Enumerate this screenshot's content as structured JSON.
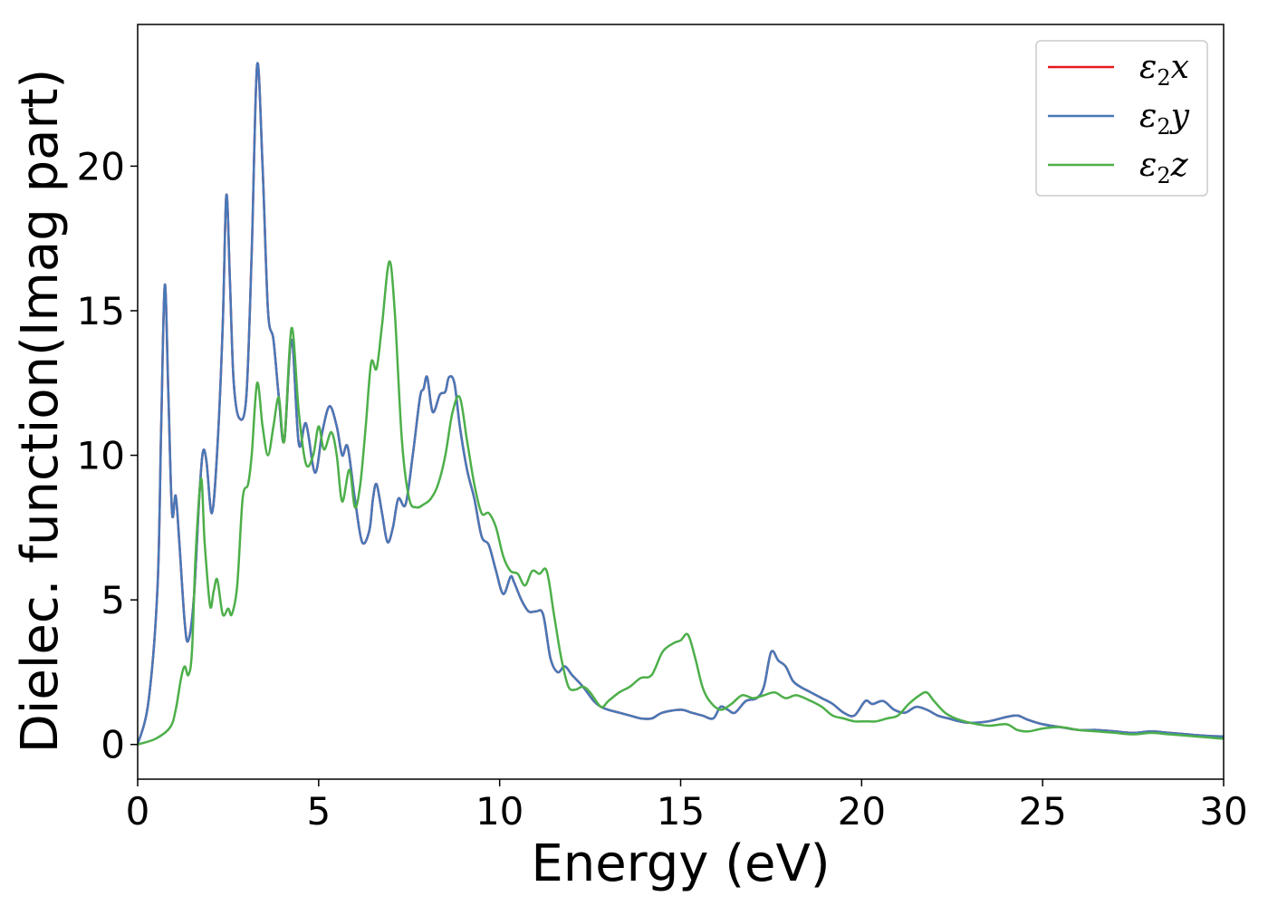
{
  "chart_data": {
    "type": "line",
    "xlabel": "Energy (eV)",
    "ylabel": "Dielec. function(Imag part)",
    "xlim": [
      0,
      30
    ],
    "ylim": [
      -1.2,
      24.9
    ],
    "xticks": [
      0,
      5,
      10,
      15,
      20,
      25,
      30
    ],
    "yticks": [
      0,
      5,
      10,
      15,
      20
    ],
    "grid": false,
    "legend_position": "top-right",
    "series": [
      {
        "name": "ε2x",
        "legend_base": "ε",
        "legend_sub": "2",
        "legend_suffix": "x",
        "color": "#e41a1c",
        "x": [
          0,
          0.3,
          0.55,
          0.65,
          0.75,
          0.85,
          0.95,
          1.05,
          1.15,
          1.3,
          1.4,
          1.55,
          1.7,
          1.8,
          1.9,
          2.05,
          2.2,
          2.35,
          2.45,
          2.55,
          2.65,
          2.8,
          3.0,
          3.15,
          3.3,
          3.45,
          3.6,
          3.75,
          3.9,
          4.05,
          4.25,
          4.45,
          4.65,
          4.9,
          5.1,
          5.3,
          5.5,
          5.65,
          5.8,
          6.0,
          6.2,
          6.4,
          6.5,
          6.6,
          6.75,
          6.9,
          7.05,
          7.2,
          7.4,
          7.6,
          7.8,
          7.9,
          8.0,
          8.15,
          8.35,
          8.5,
          8.6,
          8.75,
          8.9,
          9.1,
          9.3,
          9.5,
          9.7,
          9.9,
          10.1,
          10.3,
          10.4,
          10.6,
          10.8,
          11.0,
          11.2,
          11.4,
          11.6,
          11.8,
          12.0,
          12.3,
          12.6,
          12.8,
          13.0,
          13.3,
          13.6,
          13.9,
          14.2,
          14.5,
          15.0,
          15.3,
          15.6,
          15.9,
          16.1,
          16.3,
          16.5,
          16.8,
          17.1,
          17.3,
          17.5,
          17.7,
          17.9,
          18.1,
          18.3,
          18.6,
          18.9,
          19.2,
          19.5,
          19.8,
          20.1,
          20.3,
          20.6,
          20.9,
          21.2,
          21.5,
          21.8,
          22.1,
          22.4,
          22.7,
          23.0,
          23.5,
          24.0,
          24.3,
          24.6,
          25.0,
          25.5,
          26.0,
          26.5,
          27.0,
          27.5,
          28.0,
          28.5,
          29.0,
          29.5,
          30.0
        ],
        "y": [
          0,
          1.5,
          5.5,
          11.0,
          15.9,
          12.0,
          8.0,
          8.6,
          7.0,
          4.2,
          3.6,
          5.0,
          8.5,
          10.1,
          9.8,
          8.0,
          10.2,
          14.5,
          19.0,
          16.0,
          12.6,
          11.3,
          12.0,
          17.0,
          23.5,
          20.0,
          15.0,
          14.0,
          12.0,
          10.5,
          14.0,
          10.4,
          11.1,
          9.4,
          10.8,
          11.7,
          11.0,
          10.0,
          10.3,
          8.5,
          7.0,
          7.4,
          8.5,
          9.0,
          8.0,
          7.0,
          7.5,
          8.5,
          8.3,
          10.0,
          12.0,
          12.3,
          12.7,
          11.5,
          12.1,
          12.2,
          12.7,
          12.5,
          11.0,
          9.5,
          8.5,
          7.2,
          6.9,
          6.0,
          5.2,
          5.8,
          5.6,
          5.0,
          4.6,
          4.6,
          4.5,
          3.0,
          2.5,
          2.7,
          2.4,
          2.0,
          1.5,
          1.3,
          1.2,
          1.1,
          1.0,
          0.9,
          0.9,
          1.1,
          1.2,
          1.1,
          1.0,
          0.9,
          1.3,
          1.2,
          1.1,
          1.5,
          1.6,
          2.0,
          3.2,
          2.9,
          2.7,
          2.2,
          2.0,
          1.8,
          1.6,
          1.4,
          1.1,
          1.0,
          1.5,
          1.4,
          1.5,
          1.2,
          1.1,
          1.3,
          1.2,
          1.0,
          0.9,
          0.8,
          0.75,
          0.8,
          0.95,
          1.0,
          0.85,
          0.7,
          0.6,
          0.5,
          0.5,
          0.45,
          0.4,
          0.45,
          0.4,
          0.35,
          0.3,
          0.28
        ]
      },
      {
        "name": "ε2y",
        "legend_base": "ε",
        "legend_sub": "2",
        "legend_suffix": "y",
        "color": "#4878b8",
        "x": [
          0,
          0.3,
          0.55,
          0.65,
          0.75,
          0.85,
          0.95,
          1.05,
          1.15,
          1.3,
          1.4,
          1.55,
          1.7,
          1.8,
          1.9,
          2.05,
          2.2,
          2.35,
          2.45,
          2.55,
          2.65,
          2.8,
          3.0,
          3.15,
          3.3,
          3.45,
          3.6,
          3.75,
          3.9,
          4.05,
          4.25,
          4.45,
          4.65,
          4.9,
          5.1,
          5.3,
          5.5,
          5.65,
          5.8,
          6.0,
          6.2,
          6.4,
          6.5,
          6.6,
          6.75,
          6.9,
          7.05,
          7.2,
          7.4,
          7.6,
          7.8,
          7.9,
          8.0,
          8.15,
          8.35,
          8.5,
          8.6,
          8.75,
          8.9,
          9.1,
          9.3,
          9.5,
          9.7,
          9.9,
          10.1,
          10.3,
          10.4,
          10.6,
          10.8,
          11.0,
          11.2,
          11.4,
          11.6,
          11.8,
          12.0,
          12.3,
          12.6,
          12.8,
          13.0,
          13.3,
          13.6,
          13.9,
          14.2,
          14.5,
          15.0,
          15.3,
          15.6,
          15.9,
          16.1,
          16.3,
          16.5,
          16.8,
          17.1,
          17.3,
          17.5,
          17.7,
          17.9,
          18.1,
          18.3,
          18.6,
          18.9,
          19.2,
          19.5,
          19.8,
          20.1,
          20.3,
          20.6,
          20.9,
          21.2,
          21.5,
          21.8,
          22.1,
          22.4,
          22.7,
          23.0,
          23.5,
          24.0,
          24.3,
          24.6,
          25.0,
          25.5,
          26.0,
          26.5,
          27.0,
          27.5,
          28.0,
          28.5,
          29.0,
          29.5,
          30.0
        ],
        "y": [
          0,
          1.5,
          5.5,
          11.0,
          15.9,
          12.0,
          8.0,
          8.6,
          7.0,
          4.2,
          3.6,
          5.0,
          8.5,
          10.1,
          9.8,
          8.0,
          10.2,
          14.5,
          19.0,
          16.0,
          12.6,
          11.3,
          12.0,
          17.0,
          23.5,
          20.0,
          15.0,
          14.0,
          12.0,
          10.5,
          14.0,
          10.4,
          11.1,
          9.4,
          10.8,
          11.7,
          11.0,
          10.0,
          10.3,
          8.5,
          7.0,
          7.4,
          8.5,
          9.0,
          8.0,
          7.0,
          7.5,
          8.5,
          8.3,
          10.0,
          12.0,
          12.3,
          12.7,
          11.5,
          12.1,
          12.2,
          12.7,
          12.5,
          11.0,
          9.5,
          8.5,
          7.2,
          6.9,
          6.0,
          5.2,
          5.8,
          5.6,
          5.0,
          4.6,
          4.6,
          4.5,
          3.0,
          2.5,
          2.7,
          2.4,
          2.0,
          1.5,
          1.3,
          1.2,
          1.1,
          1.0,
          0.9,
          0.9,
          1.1,
          1.2,
          1.1,
          1.0,
          0.9,
          1.3,
          1.2,
          1.1,
          1.5,
          1.6,
          2.0,
          3.2,
          2.9,
          2.7,
          2.2,
          2.0,
          1.8,
          1.6,
          1.4,
          1.1,
          1.0,
          1.5,
          1.4,
          1.5,
          1.2,
          1.1,
          1.3,
          1.2,
          1.0,
          0.9,
          0.8,
          0.75,
          0.8,
          0.95,
          1.0,
          0.85,
          0.7,
          0.6,
          0.5,
          0.5,
          0.45,
          0.4,
          0.45,
          0.4,
          0.35,
          0.3,
          0.28
        ]
      },
      {
        "name": "ε2z",
        "legend_base": "ε",
        "legend_sub": "2",
        "legend_suffix": "z",
        "color": "#4daf4a",
        "x": [
          0,
          0.5,
          0.9,
          1.05,
          1.2,
          1.3,
          1.4,
          1.5,
          1.6,
          1.75,
          1.85,
          2.0,
          2.1,
          2.2,
          2.35,
          2.5,
          2.6,
          2.75,
          2.9,
          3.05,
          3.15,
          3.3,
          3.45,
          3.6,
          3.75,
          3.9,
          4.05,
          4.25,
          4.45,
          4.65,
          4.85,
          5.0,
          5.15,
          5.35,
          5.5,
          5.65,
          5.85,
          6.0,
          6.15,
          6.3,
          6.45,
          6.6,
          6.75,
          6.95,
          7.1,
          7.3,
          7.5,
          7.7,
          7.9,
          8.1,
          8.3,
          8.5,
          8.7,
          8.9,
          9.1,
          9.3,
          9.5,
          9.7,
          9.9,
          10.1,
          10.3,
          10.5,
          10.7,
          10.9,
          11.1,
          11.3,
          11.5,
          11.7,
          11.9,
          12.1,
          12.3,
          12.5,
          12.8,
          13.0,
          13.3,
          13.6,
          13.9,
          14.2,
          14.5,
          14.8,
          15.0,
          15.2,
          15.4,
          15.6,
          15.8,
          16.1,
          16.4,
          16.7,
          17.0,
          17.3,
          17.6,
          17.9,
          18.2,
          18.6,
          18.9,
          19.2,
          19.5,
          19.8,
          20.1,
          20.4,
          20.7,
          21.0,
          21.3,
          21.6,
          21.8,
          22.0,
          22.3,
          22.6,
          23.0,
          23.5,
          24.0,
          24.3,
          24.6,
          25.0,
          25.5,
          26.0,
          26.5,
          27.0,
          27.5,
          28.0,
          28.5,
          29.0,
          29.5,
          30.0
        ],
        "y": [
          0,
          0.2,
          0.6,
          1.2,
          2.3,
          2.7,
          2.4,
          3.2,
          6.5,
          9.2,
          7.0,
          4.8,
          5.3,
          5.7,
          4.5,
          4.7,
          4.5,
          5.5,
          8.5,
          9.0,
          10.0,
          12.5,
          11.0,
          10.0,
          11.0,
          12.0,
          10.5,
          14.4,
          11.5,
          9.7,
          10.0,
          11.0,
          10.2,
          10.8,
          10.0,
          8.4,
          9.5,
          8.2,
          9.0,
          11.0,
          13.2,
          13.0,
          14.5,
          16.7,
          15.0,
          10.5,
          8.5,
          8.2,
          8.3,
          8.5,
          9.0,
          10.0,
          11.5,
          12.0,
          10.5,
          9.0,
          8.0,
          8.0,
          7.5,
          6.5,
          6.0,
          5.9,
          5.5,
          6.0,
          5.9,
          6.0,
          4.5,
          3.0,
          2.0,
          1.9,
          2.0,
          1.8,
          1.3,
          1.5,
          1.8,
          2.0,
          2.3,
          2.4,
          3.2,
          3.5,
          3.6,
          3.8,
          3.0,
          2.0,
          1.5,
          1.2,
          1.4,
          1.7,
          1.6,
          1.7,
          1.8,
          1.6,
          1.7,
          1.5,
          1.3,
          1.0,
          0.9,
          0.8,
          0.8,
          0.8,
          0.9,
          1.0,
          1.4,
          1.7,
          1.8,
          1.5,
          1.1,
          0.9,
          0.75,
          0.65,
          0.7,
          0.5,
          0.45,
          0.55,
          0.6,
          0.5,
          0.45,
          0.4,
          0.35,
          0.4,
          0.35,
          0.3,
          0.25,
          0.2
        ]
      }
    ]
  }
}
